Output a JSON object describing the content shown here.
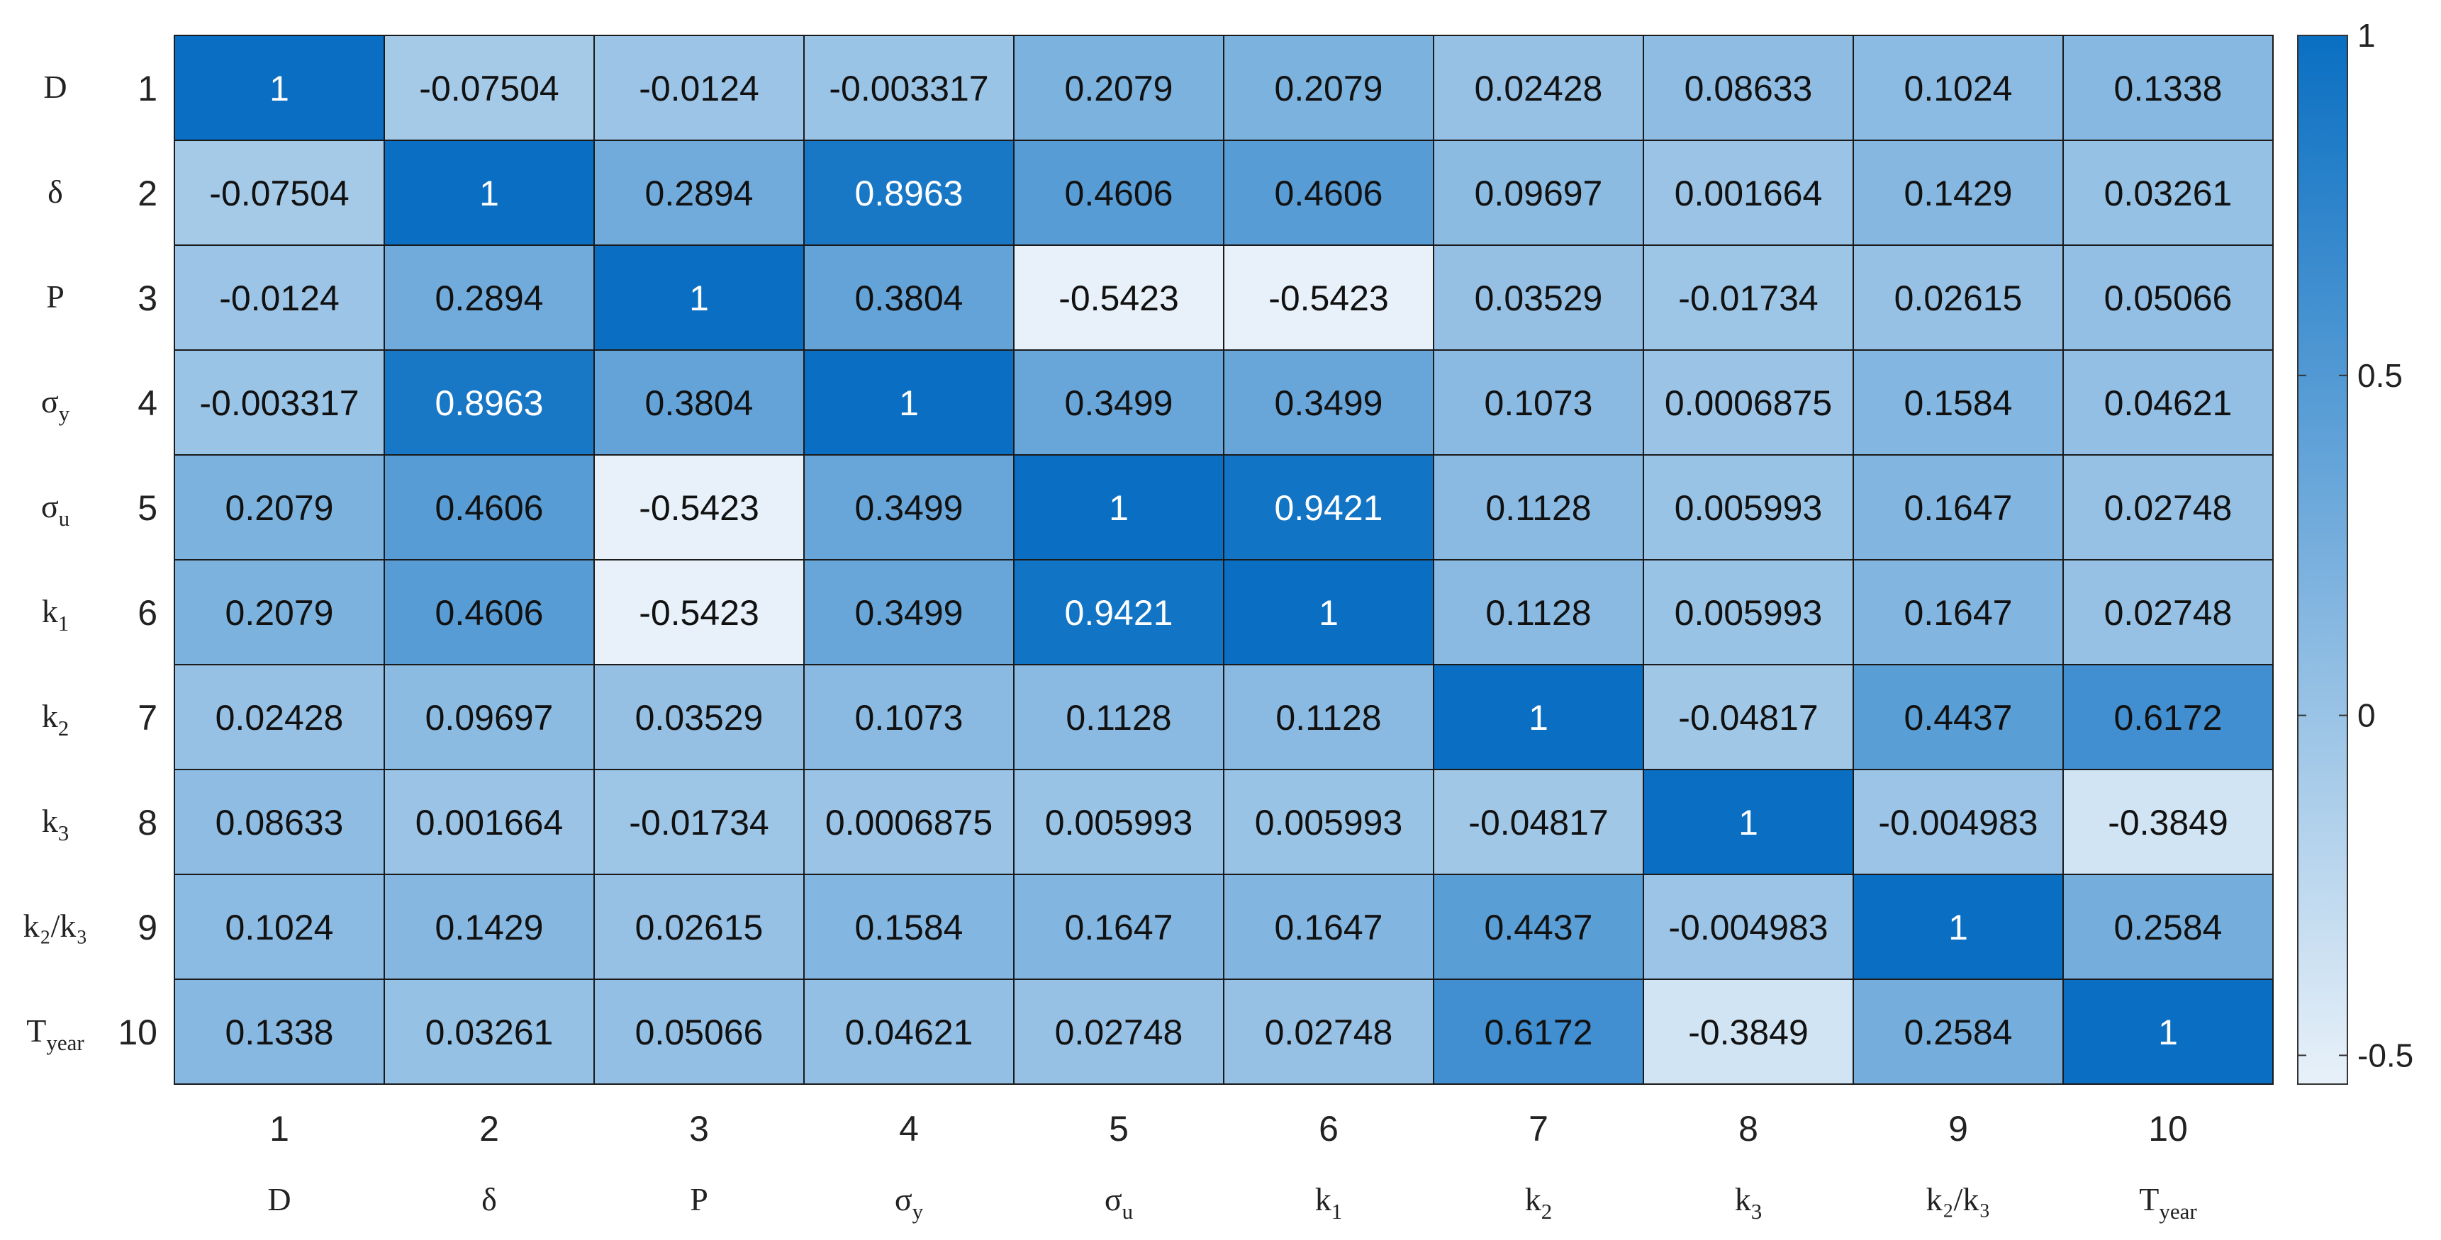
{
  "chart_data": {
    "type": "heatmap",
    "title": "",
    "xlabel": "",
    "ylabel": "",
    "row_indices": [
      "1",
      "2",
      "3",
      "4",
      "5",
      "6",
      "7",
      "8",
      "9",
      "10"
    ],
    "col_indices": [
      "1",
      "2",
      "3",
      "4",
      "5",
      "6",
      "7",
      "8",
      "9",
      "10"
    ],
    "variables": [
      {
        "base": "D",
        "sub": ""
      },
      {
        "base": "δ",
        "sub": ""
      },
      {
        "base": "P",
        "sub": ""
      },
      {
        "base": "σ",
        "sub": "y"
      },
      {
        "base": "σ",
        "sub": "u"
      },
      {
        "base": "k",
        "sub": "1"
      },
      {
        "base": "k",
        "sub": "2"
      },
      {
        "base": "k",
        "sub": "3"
      },
      {
        "base": "k₂/k₃",
        "sub": ""
      },
      {
        "base": "T",
        "sub": "year"
      }
    ],
    "values": [
      [
        1,
        -0.07504,
        -0.0124,
        -0.003317,
        0.2079,
        0.2079,
        0.02428,
        0.08633,
        0.1024,
        0.1338
      ],
      [
        -0.07504,
        1,
        0.2894,
        0.8963,
        0.4606,
        0.4606,
        0.09697,
        0.001664,
        0.1429,
        0.03261
      ],
      [
        -0.0124,
        0.2894,
        1,
        0.3804,
        -0.5423,
        -0.5423,
        0.03529,
        -0.01734,
        0.02615,
        0.05066
      ],
      [
        -0.003317,
        0.8963,
        0.3804,
        1,
        0.3499,
        0.3499,
        0.1073,
        0.0006875,
        0.1584,
        0.04621
      ],
      [
        0.2079,
        0.4606,
        -0.5423,
        0.3499,
        1,
        0.9421,
        0.1128,
        0.005993,
        0.1647,
        0.02748
      ],
      [
        0.2079,
        0.4606,
        -0.5423,
        0.3499,
        0.9421,
        1,
        0.1128,
        0.005993,
        0.1647,
        0.02748
      ],
      [
        0.02428,
        0.09697,
        0.03529,
        0.1073,
        0.1128,
        0.1128,
        1,
        -0.04817,
        0.4437,
        0.6172
      ],
      [
        0.08633,
        0.001664,
        -0.01734,
        0.0006875,
        0.005993,
        0.005993,
        -0.04817,
        1,
        -0.004983,
        -0.3849
      ],
      [
        0.1024,
        0.1429,
        0.02615,
        0.1584,
        0.1647,
        0.1647,
        0.4437,
        -0.004983,
        1,
        0.2584
      ],
      [
        0.1338,
        0.03261,
        0.05066,
        0.04621,
        0.02748,
        0.02748,
        0.6172,
        -0.3849,
        0.2584,
        1
      ]
    ],
    "value_labels": [
      [
        "1",
        "-0.07504",
        "-0.0124",
        "-0.003317",
        "0.2079",
        "0.2079",
        "0.02428",
        "0.08633",
        "0.1024",
        "0.1338"
      ],
      [
        "-0.07504",
        "1",
        "0.2894",
        "0.8963",
        "0.4606",
        "0.4606",
        "0.09697",
        "0.001664",
        "0.1429",
        "0.03261"
      ],
      [
        "-0.0124",
        "0.2894",
        "1",
        "0.3804",
        "-0.5423",
        "-0.5423",
        "0.03529",
        "-0.01734",
        "0.02615",
        "0.05066"
      ],
      [
        "-0.003317",
        "0.8963",
        "0.3804",
        "1",
        "0.3499",
        "0.3499",
        "0.1073",
        "0.0006875",
        "0.1584",
        "0.04621"
      ],
      [
        "0.2079",
        "0.4606",
        "-0.5423",
        "0.3499",
        "1",
        "0.9421",
        "0.1128",
        "0.005993",
        "0.1647",
        "0.02748"
      ],
      [
        "0.2079",
        "0.4606",
        "-0.5423",
        "0.3499",
        "0.9421",
        "1",
        "0.1128",
        "0.005993",
        "0.1647",
        "0.02748"
      ],
      [
        "0.02428",
        "0.09697",
        "0.03529",
        "0.1073",
        "0.1128",
        "0.1128",
        "1",
        "-0.04817",
        "0.4437",
        "0.6172"
      ],
      [
        "0.08633",
        "0.001664",
        "-0.01734",
        "0.0006875",
        "0.005993",
        "0.005993",
        "-0.04817",
        "1",
        "-0.004983",
        "-0.3849"
      ],
      [
        "0.1024",
        "0.1429",
        "0.02615",
        "0.1584",
        "0.1647",
        "0.1647",
        "0.4437",
        "-0.004983",
        "1",
        "0.2584"
      ],
      [
        "0.1338",
        "0.03261",
        "0.05066",
        "0.04621",
        "0.02748",
        "0.02748",
        "0.6172",
        "-0.3849",
        "0.2584",
        "1"
      ]
    ],
    "color_range": [
      -0.5423,
      1
    ],
    "colormap": {
      "low": "#e8f1f9",
      "high": "#0a6fc2"
    },
    "text_color_dark": "#111111",
    "text_color_light": "#ffffff",
    "grid_line_color": "#1a1a1a",
    "colorbar": {
      "position": "right",
      "ticks": [
        1,
        0.5,
        0,
        -0.5
      ],
      "tick_labels": [
        "1",
        "0.5",
        "0",
        "-0.5"
      ]
    },
    "grid": true,
    "legend": "none"
  }
}
